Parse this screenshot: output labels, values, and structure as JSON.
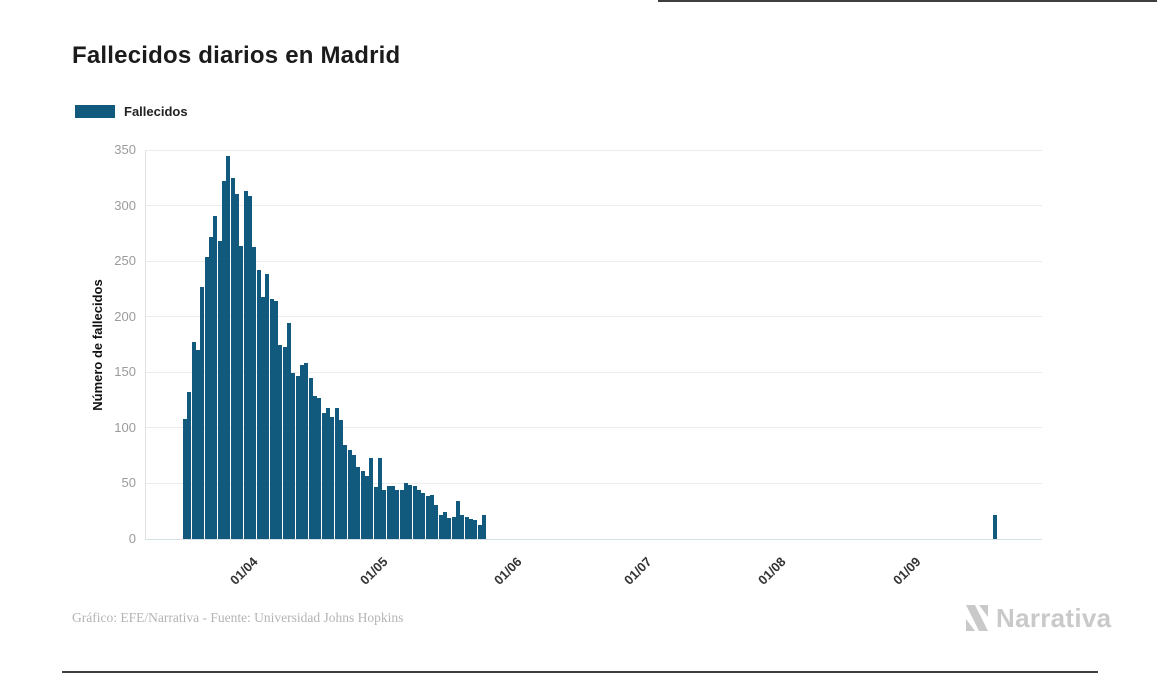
{
  "title": "Fallecidos diarios en Madrid",
  "legend": {
    "label": "Fallecidos",
    "swatch_color": "#115A7E"
  },
  "footer_credit": "Gráfico: EFE/Narrativa - Fuente: Universidad Johns Hopkins",
  "brand": {
    "name": "Narrativa",
    "color": "#c9c9c9"
  },
  "chart_data": {
    "type": "bar",
    "title": "Fallecidos diarios en Madrid",
    "series_name": "Fallecidos",
    "bar_color": "#115A7E",
    "ylabel": "Número de fallecidos",
    "ylim": [
      0,
      350
    ],
    "yticks": [
      0,
      50,
      100,
      150,
      200,
      250,
      300,
      350
    ],
    "grid": "horizontal",
    "legend_position": "top-left",
    "x_type": "date",
    "date_format": "DD/MM",
    "year": 2020,
    "xticks": [
      "01/04",
      "01/05",
      "01/06",
      "01/07",
      "01/08",
      "01/09"
    ],
    "bars": [
      {
        "date": "18/03",
        "value": 108
      },
      {
        "date": "19/03",
        "value": 132
      },
      {
        "date": "20/03",
        "value": 177
      },
      {
        "date": "21/03",
        "value": 170
      },
      {
        "date": "22/03",
        "value": 227
      },
      {
        "date": "23/03",
        "value": 254
      },
      {
        "date": "24/03",
        "value": 272
      },
      {
        "date": "25/03",
        "value": 291
      },
      {
        "date": "26/03",
        "value": 268
      },
      {
        "date": "27/03",
        "value": 322
      },
      {
        "date": "28/03",
        "value": 345
      },
      {
        "date": "29/03",
        "value": 325
      },
      {
        "date": "30/03",
        "value": 310
      },
      {
        "date": "31/03",
        "value": 264
      },
      {
        "date": "01/04",
        "value": 313
      },
      {
        "date": "02/04",
        "value": 309
      },
      {
        "date": "03/04",
        "value": 263
      },
      {
        "date": "04/04",
        "value": 242
      },
      {
        "date": "05/04",
        "value": 218
      },
      {
        "date": "06/04",
        "value": 238
      },
      {
        "date": "07/04",
        "value": 216
      },
      {
        "date": "08/04",
        "value": 214
      },
      {
        "date": "09/04",
        "value": 175
      },
      {
        "date": "10/04",
        "value": 173
      },
      {
        "date": "11/04",
        "value": 194
      },
      {
        "date": "12/04",
        "value": 149
      },
      {
        "date": "13/04",
        "value": 147
      },
      {
        "date": "14/04",
        "value": 157
      },
      {
        "date": "15/04",
        "value": 158
      },
      {
        "date": "16/04",
        "value": 145
      },
      {
        "date": "17/04",
        "value": 129
      },
      {
        "date": "18/04",
        "value": 127
      },
      {
        "date": "19/04",
        "value": 113
      },
      {
        "date": "20/04",
        "value": 118
      },
      {
        "date": "21/04",
        "value": 110
      },
      {
        "date": "22/04",
        "value": 118
      },
      {
        "date": "23/04",
        "value": 107
      },
      {
        "date": "24/04",
        "value": 85
      },
      {
        "date": "25/04",
        "value": 80
      },
      {
        "date": "26/04",
        "value": 76
      },
      {
        "date": "27/04",
        "value": 65
      },
      {
        "date": "28/04",
        "value": 61
      },
      {
        "date": "29/04",
        "value": 57
      },
      {
        "date": "30/04",
        "value": 73
      },
      {
        "date": "01/05",
        "value": 47
      },
      {
        "date": "02/05",
        "value": 73
      },
      {
        "date": "03/05",
        "value": 44
      },
      {
        "date": "04/05",
        "value": 48
      },
      {
        "date": "05/05",
        "value": 48
      },
      {
        "date": "06/05",
        "value": 44
      },
      {
        "date": "07/05",
        "value": 44
      },
      {
        "date": "08/05",
        "value": 50
      },
      {
        "date": "09/05",
        "value": 49
      },
      {
        "date": "10/05",
        "value": 48
      },
      {
        "date": "11/05",
        "value": 44
      },
      {
        "date": "12/05",
        "value": 41
      },
      {
        "date": "13/05",
        "value": 39
      },
      {
        "date": "14/05",
        "value": 40
      },
      {
        "date": "15/05",
        "value": 31
      },
      {
        "date": "16/05",
        "value": 22
      },
      {
        "date": "17/05",
        "value": 24
      },
      {
        "date": "18/05",
        "value": 19
      },
      {
        "date": "19/05",
        "value": 20
      },
      {
        "date": "20/05",
        "value": 34
      },
      {
        "date": "21/05",
        "value": 22
      },
      {
        "date": "22/05",
        "value": 20
      },
      {
        "date": "23/05",
        "value": 18
      },
      {
        "date": "24/05",
        "value": 17
      },
      {
        "date": "25/05",
        "value": 13
      },
      {
        "date": "26/05",
        "value": 22
      },
      {
        "date": "21/09",
        "value": 22
      }
    ]
  }
}
